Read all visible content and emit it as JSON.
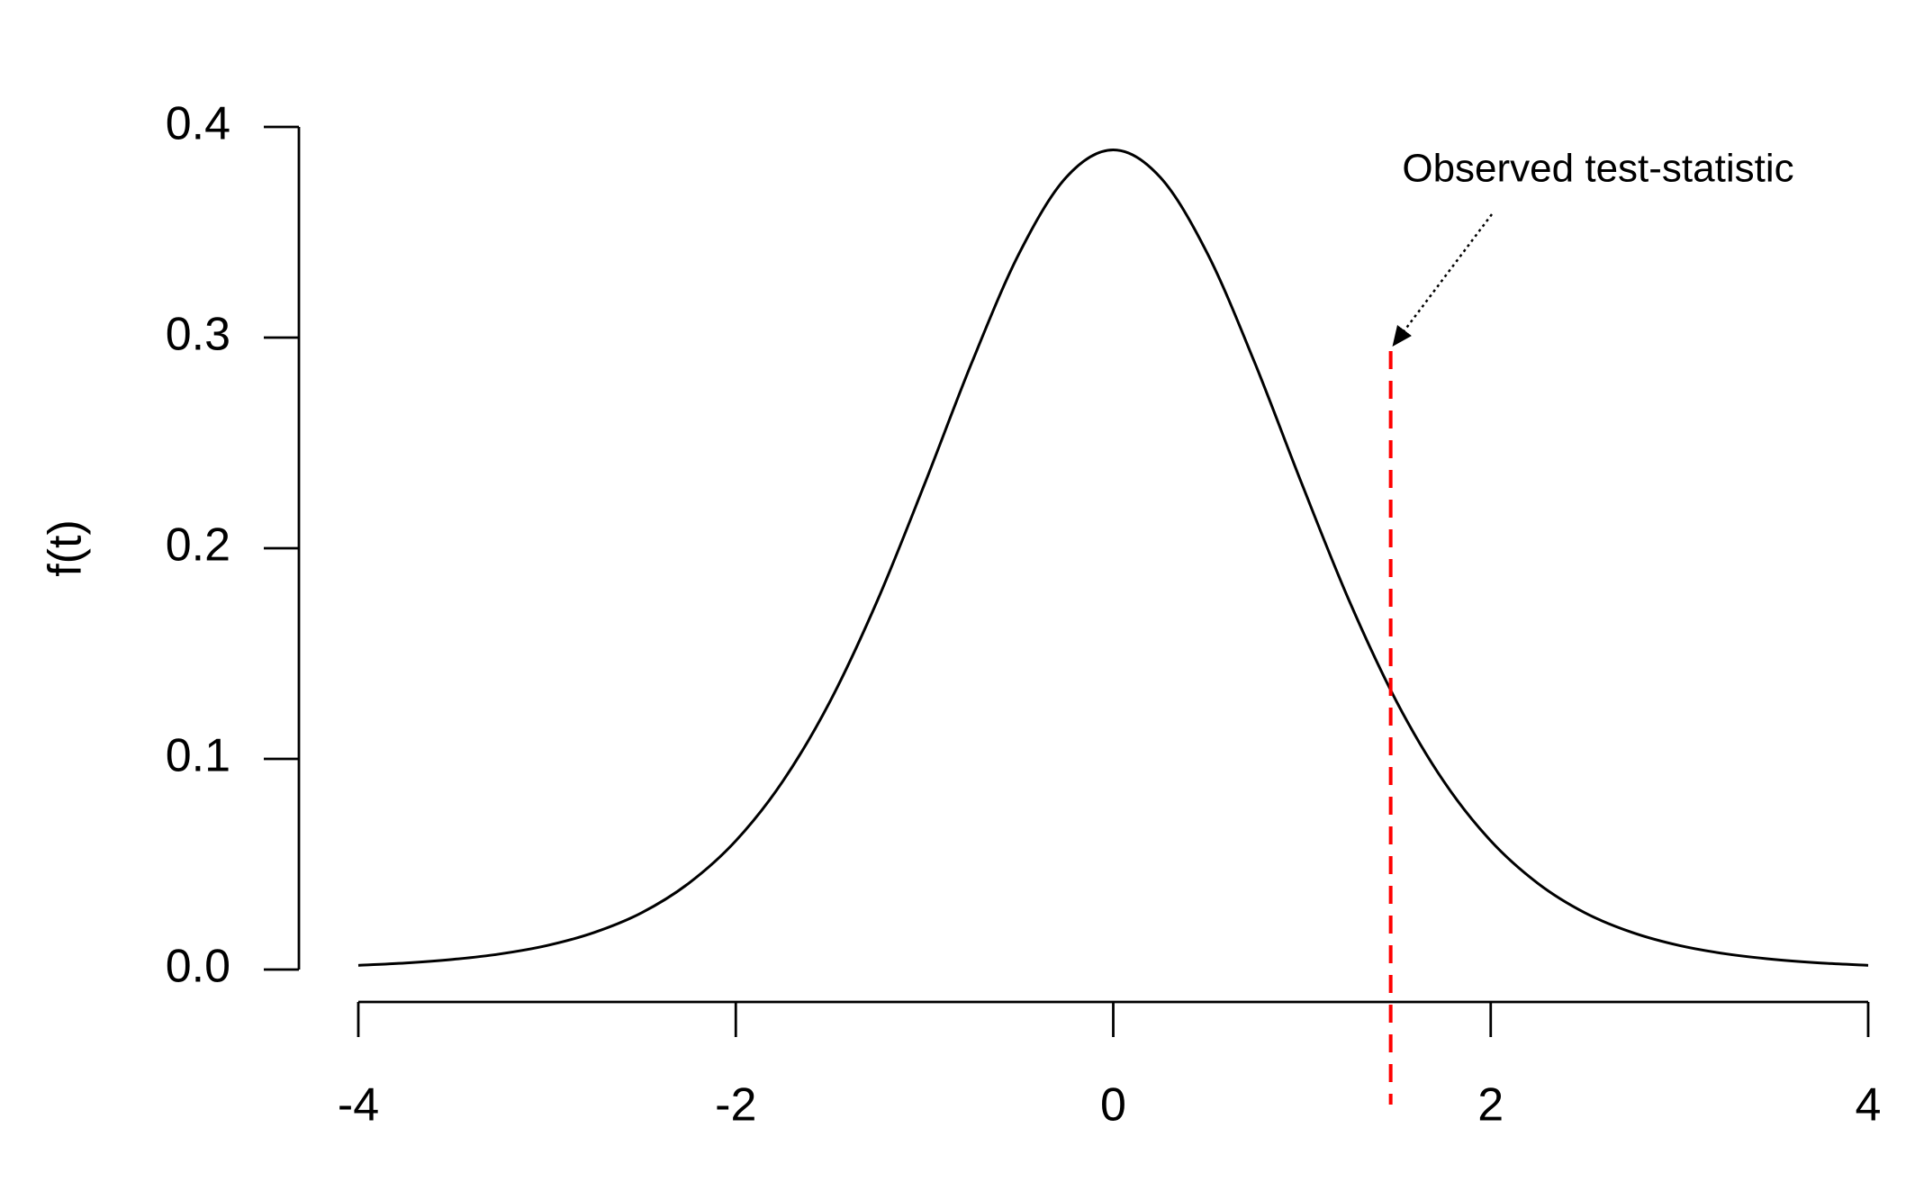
{
  "chart_data": {
    "type": "line",
    "ylabel": "f(t)",
    "x": [
      -4,
      -3.75,
      -3.5,
      -3.25,
      -3,
      -2.75,
      -2.5,
      -2.25,
      -2,
      -1.75,
      -1.5,
      -1.25,
      -1,
      -0.75,
      -0.5,
      -0.25,
      0,
      0.25,
      0.5,
      0.75,
      1,
      1.25,
      1.5,
      1.75,
      2,
      2.25,
      2.5,
      2.75,
      3,
      3.25,
      3.5,
      3.75,
      4
    ],
    "values": [
      0.002,
      0.0031,
      0.0048,
      0.0074,
      0.0114,
      0.0176,
      0.0269,
      0.0409,
      0.0611,
      0.0895,
      0.1274,
      0.1751,
      0.2304,
      0.288,
      0.3397,
      0.376,
      0.3891,
      0.376,
      0.3397,
      0.288,
      0.2304,
      0.1751,
      0.1274,
      0.0895,
      0.0611,
      0.0409,
      0.0269,
      0.0176,
      0.0114,
      0.0074,
      0.0048,
      0.0031,
      0.002
    ],
    "color": "#000000",
    "xlim": [
      -4,
      4
    ],
    "xticks": [
      -4,
      -2,
      0,
      2,
      4
    ],
    "ylim": [
      0,
      0.4
    ],
    "yticks": [
      {
        "value": 0,
        "label": "0.0"
      },
      0.1,
      0.2,
      0.3,
      0.4
    ],
    "observed": {
      "x": 1.47,
      "label": "Observed test-statistic",
      "color": "#ff0000"
    }
  }
}
